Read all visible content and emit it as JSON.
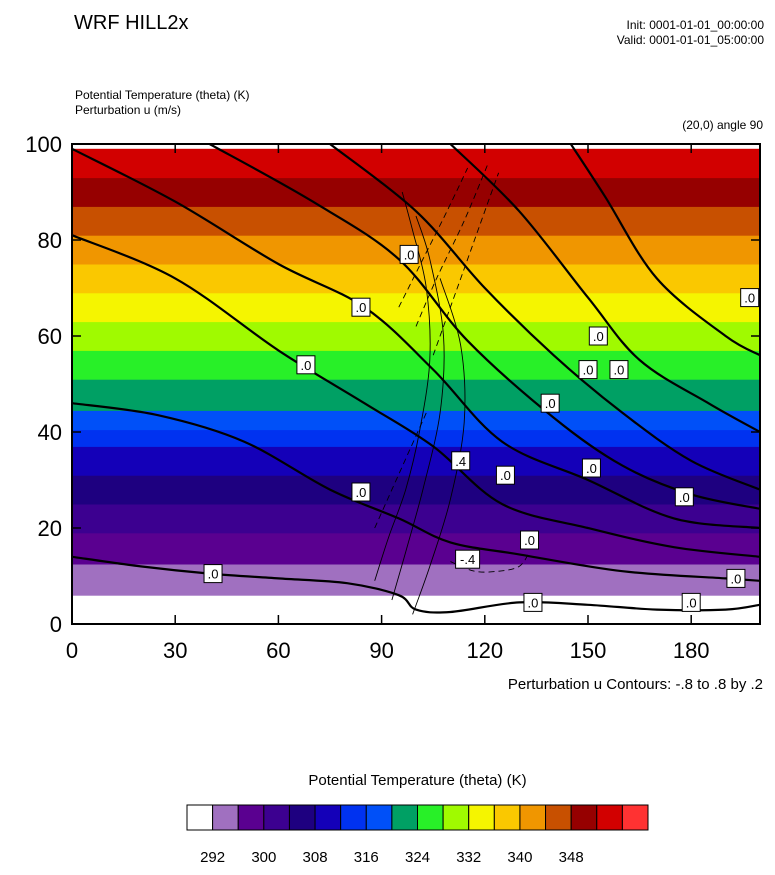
{
  "header": {
    "title": "WRF HILL2x",
    "init": "Init: 0001-01-01_00:00:00",
    "valid": "Valid: 0001-01-01_05:00:00",
    "field_shaded": "Potential Temperature (theta)    (K)",
    "field_contour": "Perturbation u    (m/s)",
    "cross_section": "(20,0) angle 90"
  },
  "chart_data": {
    "type": "heatmap",
    "title": "WRF HILL2x",
    "xlim": [
      0,
      200
    ],
    "ylim": [
      0,
      100
    ],
    "x_ticks": [
      0,
      30,
      60,
      90,
      120,
      150,
      180
    ],
    "y_ticks": [
      0,
      20,
      40,
      60,
      80,
      100
    ],
    "shaded_variable": "Potential Temperature (theta)    (K)",
    "contour_variable": "Perturbation u    (m/s)",
    "contour_info": "Perturbation u Contours: -.8 to .8 by .2",
    "theta_bands": [
      {
        "y0": 0,
        "y1": 6,
        "color": "#ffffff"
      },
      {
        "y0": 6,
        "y1": 12.5,
        "color": "#a070c0"
      },
      {
        "y0": 12.5,
        "y1": 19,
        "color": "#5a0090"
      },
      {
        "y0": 19,
        "y1": 25,
        "color": "#3c0090"
      },
      {
        "y0": 25,
        "y1": 31,
        "color": "#1e0080"
      },
      {
        "y0": 31,
        "y1": 37,
        "color": "#1400b8"
      },
      {
        "y0": 37,
        "y1": 40.5,
        "color": "#0032f0"
      },
      {
        "y0": 40.5,
        "y1": 44.5,
        "color": "#0050f8"
      },
      {
        "y0": 44.5,
        "y1": 51,
        "color": "#00a064"
      },
      {
        "y0": 51,
        "y1": 57,
        "color": "#28f028"
      },
      {
        "y0": 57,
        "y1": 63,
        "color": "#a0fa00"
      },
      {
        "y0": 63,
        "y1": 69,
        "color": "#f5f500"
      },
      {
        "y0": 69,
        "y1": 75,
        "color": "#fac800"
      },
      {
        "y0": 75,
        "y1": 81,
        "color": "#f09600"
      },
      {
        "y0": 81,
        "y1": 87,
        "color": "#c85000"
      },
      {
        "y0": 87,
        "y1": 93,
        "color": "#960000"
      },
      {
        "y0": 93,
        "y1": 99,
        "color": "#d20000"
      }
    ],
    "theta_contours": [
      {
        "label": ".0",
        "points": [
          [
            0,
            14
          ],
          [
            20,
            12
          ],
          [
            40,
            10.5
          ],
          [
            60,
            9.5
          ],
          [
            80,
            8.5
          ],
          [
            95,
            6
          ],
          [
            100,
            3
          ],
          [
            110,
            2.5
          ],
          [
            130,
            4.5
          ],
          [
            150,
            4
          ],
          [
            170,
            3
          ],
          [
            190,
            3
          ],
          [
            200,
            4
          ]
        ]
      },
      {
        "label": ".0",
        "points": [
          [
            0,
            46
          ],
          [
            25,
            43.5
          ],
          [
            50,
            38
          ],
          [
            75,
            28
          ],
          [
            95,
            22
          ],
          [
            110,
            17
          ],
          [
            130,
            14.5
          ],
          [
            160,
            11
          ],
          [
            190,
            9.5
          ],
          [
            200,
            9
          ]
        ]
      },
      {
        "label": ".0",
        "points": [
          [
            0,
            81
          ],
          [
            30,
            72
          ],
          [
            60,
            57
          ],
          [
            85,
            46
          ],
          [
            105,
            37
          ],
          [
            125,
            25
          ],
          [
            150,
            20
          ],
          [
            175,
            16
          ],
          [
            200,
            14
          ]
        ]
      },
      {
        "label": ".0",
        "points": [
          [
            0,
            99
          ],
          [
            30,
            88
          ],
          [
            60,
            75
          ],
          [
            85,
            66
          ],
          [
            105,
            53
          ],
          [
            125,
            38
          ],
          [
            150,
            30
          ],
          [
            175,
            22
          ],
          [
            200,
            20
          ]
        ]
      },
      {
        "label": ".0",
        "points": [
          [
            40,
            100
          ],
          [
            70,
            88
          ],
          [
            95,
            76
          ],
          [
            115,
            59
          ],
          [
            140,
            43
          ],
          [
            160,
            33
          ],
          [
            180,
            27
          ],
          [
            200,
            24
          ]
        ]
      },
      {
        "label": ".0",
        "points": [
          [
            75,
            100
          ],
          [
            100,
            86
          ],
          [
            120,
            70
          ],
          [
            140,
            56
          ],
          [
            160,
            44
          ],
          [
            180,
            34
          ],
          [
            200,
            28
          ]
        ]
      },
      {
        "label": ".0",
        "points": [
          [
            110,
            100
          ],
          [
            130,
            86
          ],
          [
            150,
            68
          ],
          [
            165,
            55
          ],
          [
            185,
            46
          ],
          [
            200,
            40
          ]
        ]
      },
      {
        "label": ".0",
        "points": [
          [
            145,
            100
          ],
          [
            155,
            89
          ],
          [
            170,
            72
          ],
          [
            190,
            60
          ],
          [
            200,
            56
          ]
        ]
      }
    ],
    "u_contours": [
      {
        "dashed": false,
        "points": [
          [
            88,
            9
          ],
          [
            92,
            18
          ],
          [
            97,
            28
          ],
          [
            101,
            40
          ],
          [
            104,
            55
          ],
          [
            103,
            70
          ],
          [
            99,
            82
          ],
          [
            96,
            90
          ]
        ]
      },
      {
        "dashed": false,
        "points": [
          [
            93,
            5
          ],
          [
            97,
            15
          ],
          [
            102,
            28
          ],
          [
            107,
            44
          ],
          [
            108,
            60
          ],
          [
            104,
            76
          ],
          [
            100,
            85
          ]
        ]
      },
      {
        "dashed": false,
        "points": [
          [
            99,
            2
          ],
          [
            104,
            12
          ],
          [
            110,
            26
          ],
          [
            114,
            42
          ],
          [
            113,
            58
          ],
          [
            107,
            72
          ]
        ]
      },
      {
        "dashed": true,
        "points": [
          [
            105,
            56
          ],
          [
            110,
            66
          ],
          [
            117,
            80
          ],
          [
            124,
            94
          ]
        ]
      },
      {
        "dashed": true,
        "points": [
          [
            100,
            62
          ],
          [
            106,
            72
          ],
          [
            114,
            84
          ],
          [
            121,
            96
          ]
        ]
      },
      {
        "dashed": true,
        "points": [
          [
            95,
            66
          ],
          [
            102,
            76
          ],
          [
            109,
            86
          ],
          [
            115,
            95
          ]
        ]
      },
      {
        "dashed": true,
        "points": [
          [
            110,
            13
          ],
          [
            117,
            11
          ],
          [
            124,
            11
          ],
          [
            130,
            12
          ],
          [
            133,
            15
          ]
        ]
      },
      {
        "dashed": true,
        "points": [
          [
            88,
            20
          ],
          [
            93,
            28
          ],
          [
            98,
            36
          ],
          [
            103,
            44
          ]
        ]
      }
    ],
    "contour_labels": [
      {
        "text": ".0",
        "x": 98,
        "y": 77
      },
      {
        "text": ".0",
        "x": 84,
        "y": 66
      },
      {
        "text": ".0",
        "x": 68,
        "y": 54
      },
      {
        "text": ".0",
        "x": 84,
        "y": 27.5
      },
      {
        "text": ".0",
        "x": 41,
        "y": 10.5
      },
      {
        "text": ".4",
        "x": 113,
        "y": 34
      },
      {
        "text": "-.4",
        "x": 115,
        "y": 13.5
      },
      {
        "text": ".0",
        "x": 126,
        "y": 31
      },
      {
        "text": ".0",
        "x": 133,
        "y": 17.5
      },
      {
        "text": ".0",
        "x": 139,
        "y": 46
      },
      {
        "text": ".0",
        "x": 150,
        "y": 53
      },
      {
        "text": ".0",
        "x": 159,
        "y": 53
      },
      {
        "text": ".0",
        "x": 153,
        "y": 60
      },
      {
        "text": ".0",
        "x": 151,
        "y": 32.5
      },
      {
        "text": ".0",
        "x": 134,
        "y": 4.5
      },
      {
        "text": ".0",
        "x": 178,
        "y": 26.5
      },
      {
        "text": ".0",
        "x": 180,
        "y": 4.5
      },
      {
        "text": ".0",
        "x": 193,
        "y": 9.5
      },
      {
        "text": ".0",
        "x": 197,
        "y": 68
      }
    ]
  },
  "colorbar": {
    "title": "Potential Temperature (theta)    (K)",
    "colors": [
      "#ffffff",
      "#a070c0",
      "#5a0090",
      "#3c0090",
      "#1e0080",
      "#1400b8",
      "#0032f0",
      "#0050f8",
      "#00a064",
      "#28f028",
      "#a0fa00",
      "#f5f500",
      "#fac800",
      "#f09600",
      "#c85000",
      "#960000",
      "#d20000",
      "#ff3232"
    ],
    "labels": [
      "292",
      "300",
      "308",
      "316",
      "324",
      "332",
      "340",
      "348"
    ]
  }
}
